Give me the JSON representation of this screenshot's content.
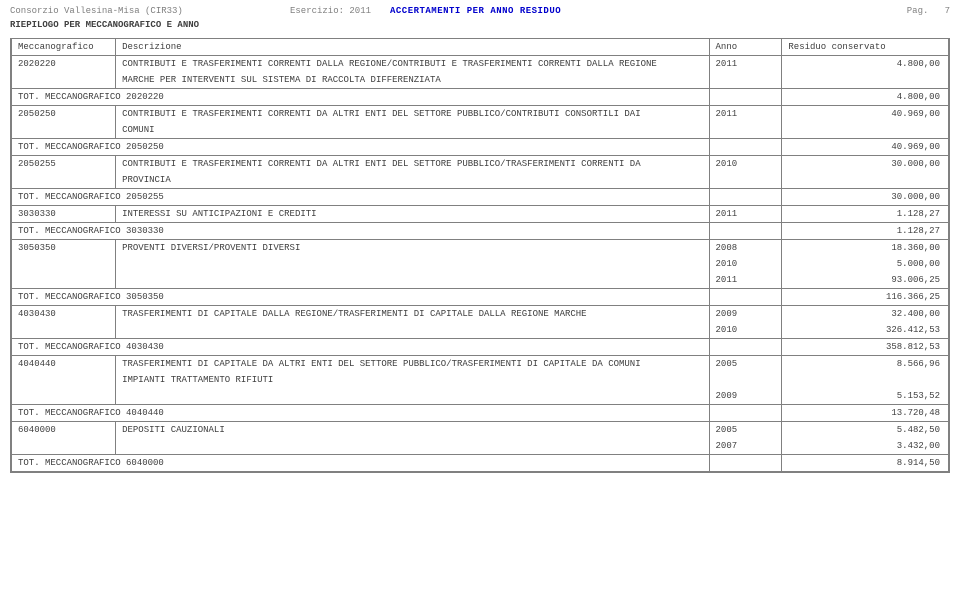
{
  "header": {
    "org": "Consorzio Vallesina-Misa (CIR33)",
    "esercizio": "Esercizio: 2011",
    "title": "ACCERTAMENTI PER ANNO RESIDUO",
    "pag": "Pag.",
    "pagnum": "7",
    "sub": "RIEPILOGO PER MECCANOGRAFICO E ANNO"
  },
  "columns": {
    "mec": "Meccanografico",
    "desc": "Descrizione",
    "anno": "Anno",
    "res": "Residuo conservato"
  },
  "rows": [
    {
      "type": "code",
      "mec": "2020220",
      "desc": "CONTRIBUTI E TRASFERIMENTI CORRENTI DALLA REGIONE/CONTRIBUTI E TRASFERIMENTI CORRENTI DALLA REGIONE",
      "anno": "2011",
      "res": "4.800,00"
    },
    {
      "type": "cont",
      "desc": "MARCHE PER INTERVENTI SUL SISTEMA DI RACCOLTA DIFFERENZIATA"
    },
    {
      "type": "tot",
      "label": "TOT. MECCANOGRAFICO 2020220",
      "res": "4.800,00"
    },
    {
      "type": "code",
      "mec": "2050250",
      "desc": "CONTRIBUTI E TRASFERIMENTI CORRENTI DA ALTRI ENTI DEL SETTORE PUBBLICO/CONTRIBUTI CONSORTILI DAI",
      "anno": "2011",
      "res": "40.969,00"
    },
    {
      "type": "cont",
      "desc": "COMUNI"
    },
    {
      "type": "tot",
      "label": "TOT. MECCANOGRAFICO 2050250",
      "res": "40.969,00"
    },
    {
      "type": "code",
      "mec": "2050255",
      "desc": "CONTRIBUTI E TRASFERIMENTI CORRENTI DA ALTRI ENTI DEL SETTORE PUBBLICO/TRASFERIMENTI CORRENTI DA",
      "anno": "2010",
      "res": "30.000,00"
    },
    {
      "type": "cont",
      "desc": "PROVINCIA"
    },
    {
      "type": "tot",
      "label": "TOT. MECCANOGRAFICO 2050255",
      "res": "30.000,00"
    },
    {
      "type": "code",
      "mec": "3030330",
      "desc": "INTERESSI SU ANTICIPAZIONI E CREDITI",
      "anno": "2011",
      "res": "1.128,27"
    },
    {
      "type": "tot",
      "label": "TOT. MECCANOGRAFICO 3030330",
      "res": "1.128,27"
    },
    {
      "type": "code",
      "mec": "3050350",
      "desc": "PROVENTI DIVERSI/PROVENTI DIVERSI",
      "anno": "2008",
      "res": "18.360,00"
    },
    {
      "type": "year",
      "anno": "2010",
      "res": "5.000,00"
    },
    {
      "type": "year",
      "anno": "2011",
      "res": "93.006,25"
    },
    {
      "type": "tot",
      "label": "TOT. MECCANOGRAFICO 3050350",
      "res": "116.366,25"
    },
    {
      "type": "code",
      "mec": "4030430",
      "desc": "TRASFERIMENTI DI CAPITALE DALLA REGIONE/TRASFERIMENTI DI CAPITALE DALLA REGIONE MARCHE",
      "anno": "2009",
      "res": "32.400,00"
    },
    {
      "type": "year",
      "anno": "2010",
      "res": "326.412,53"
    },
    {
      "type": "tot",
      "label": "TOT. MECCANOGRAFICO 4030430",
      "res": "358.812,53"
    },
    {
      "type": "code",
      "mec": "4040440",
      "desc": "TRASFERIMENTI DI CAPITALE DA ALTRI ENTI DEL SETTORE PUBBLICO/TRASFERIMENTI DI CAPITALE DA COMUNI",
      "anno": "2005",
      "res": "8.566,96"
    },
    {
      "type": "cont",
      "desc": "IMPIANTI TRATTAMENTO RIFIUTI"
    },
    {
      "type": "year",
      "anno": "2009",
      "res": "5.153,52"
    },
    {
      "type": "tot",
      "label": "TOT. MECCANOGRAFICO 4040440",
      "res": "13.720,48"
    },
    {
      "type": "code",
      "mec": "6040000",
      "desc": "DEPOSITI CAUZIONALI",
      "anno": "2005",
      "res": "5.482,50"
    },
    {
      "type": "year",
      "anno": "2007",
      "res": "3.432,00"
    },
    {
      "type": "tot",
      "label": "TOT. MECCANOGRAFICO 6040000",
      "res": "8.914,50"
    }
  ]
}
